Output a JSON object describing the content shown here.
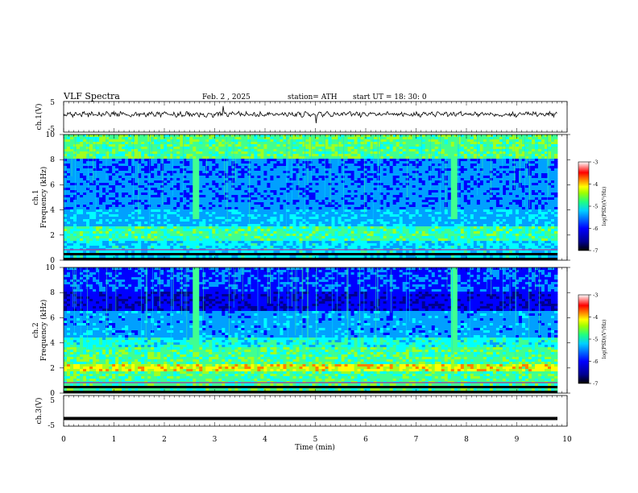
{
  "header": {
    "title": "VLF  Spectra",
    "date": "Feb. 2  , 2025",
    "station": "station= ATH",
    "start": "start  UT  =    18: 30: 0"
  },
  "chart_data": [
    {
      "type": "line",
      "panel": "ch1-waveform",
      "ylabel": "ch.1(V)",
      "yticks": [
        "5",
        "-5"
      ],
      "ylim": [
        -5,
        5
      ],
      "x_range_min": [
        0,
        9.8
      ],
      "description_values": "noisy waveform centered near 0 V with spikes"
    },
    {
      "type": "heatmap",
      "panel": "ch1-spectrogram",
      "ylabel_channel": "ch.1",
      "ylabel": "Frequency  (kHz)",
      "yticks": [
        "0",
        "2",
        "4",
        "6",
        "8",
        "10"
      ],
      "ylim": [
        0,
        10
      ],
      "xlim": [
        0,
        10
      ],
      "colorbar": {
        "label": "log(PSD)(V²/Hz)",
        "ticks": [
          "-3",
          "-4",
          "-5",
          "-6",
          "-7"
        ],
        "range": [
          -7,
          -3
        ]
      },
      "bright_columns_min": [
        2.65,
        7.75
      ]
    },
    {
      "type": "heatmap",
      "panel": "ch2-spectrogram",
      "ylabel_channel": "ch.2",
      "ylabel": "Frequency  (kHz)",
      "yticks": [
        "0",
        "2",
        "4",
        "6",
        "8",
        "10"
      ],
      "ylim": [
        0,
        10
      ],
      "xlim": [
        0,
        10
      ],
      "colorbar": {
        "label": "log(PSD)(V²/Hz)",
        "ticks": [
          "-3",
          "-4",
          "-5",
          "-6",
          "-7"
        ],
        "range": [
          -7,
          -3
        ]
      },
      "bright_columns_min": [
        2.65,
        7.75
      ]
    },
    {
      "type": "line",
      "panel": "ch3-waveform",
      "ylabel": "ch.3(V)",
      "yticks": [
        "5",
        "-5"
      ],
      "ylim": [
        -5,
        5
      ],
      "constant_value_v": -2.5
    }
  ],
  "xaxis": {
    "label": "Time  (min)",
    "ticks": [
      "0",
      "1",
      "2",
      "3",
      "4",
      "5",
      "6",
      "7",
      "8",
      "9",
      "10"
    ]
  },
  "colors": {
    "jet": [
      "#000000",
      "#00008f",
      "#0000ff",
      "#00a0ff",
      "#00ffff",
      "#40ff90",
      "#a0ff20",
      "#ffff00",
      "#ff8000",
      "#ff0000",
      "#ffffff"
    ]
  }
}
